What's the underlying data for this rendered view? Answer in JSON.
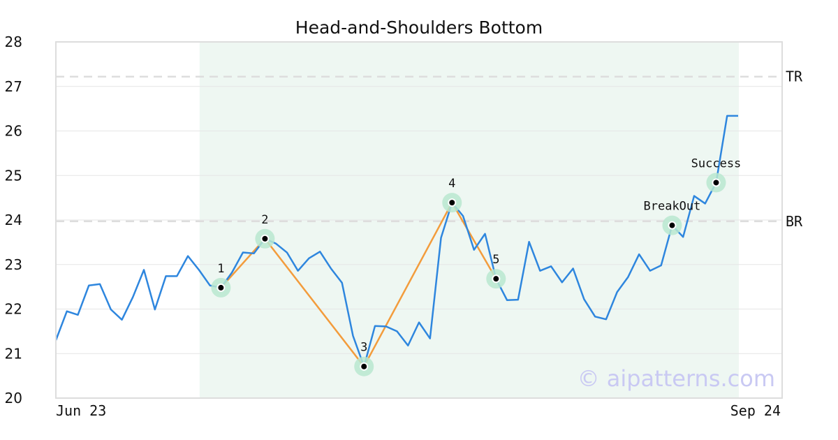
{
  "chart_data": {
    "type": "line",
    "title": "Head-and-Shoulders Bottom",
    "xlabel": "",
    "ylabel": "",
    "ylim": [
      20,
      28
    ],
    "y_ticks": [
      20,
      21,
      22,
      23,
      24,
      25,
      26,
      27,
      28
    ],
    "x_tick_labels": [
      "Jun 23",
      "Sep 24"
    ],
    "grid": "horizontal",
    "colors": {
      "price": "#2e86de",
      "pattern": "#f39c3c",
      "marker_halo": "#b9e8d0",
      "highlight": "#eef7f2",
      "reference": "#dddddd"
    },
    "series": [
      {
        "values": [
          21.3,
          21.95,
          21.87,
          22.53,
          22.56,
          21.99,
          21.76,
          22.27,
          22.88,
          21.99,
          22.74,
          22.74,
          23.19,
          22.88,
          22.53,
          22.48,
          22.82,
          23.27,
          23.25,
          23.58,
          23.47,
          23.27,
          22.86,
          23.14,
          23.29,
          22.91,
          22.59,
          21.4,
          20.71,
          21.62,
          21.61,
          21.5,
          21.18,
          21.7,
          21.34,
          23.6,
          24.39,
          24.09,
          23.33,
          23.69,
          22.68,
          22.2,
          22.21,
          23.51,
          22.86,
          22.96,
          22.6,
          22.91,
          22.22,
          21.83,
          21.77,
          22.38,
          22.72,
          23.23,
          22.86,
          22.98,
          23.88,
          23.62,
          24.54,
          24.37,
          24.84,
          26.34,
          26.34
        ]
      }
    ],
    "pattern_points": [
      {
        "label": "1",
        "index": 15,
        "value": 22.48
      },
      {
        "label": "2",
        "index": 19,
        "value": 23.58
      },
      {
        "label": "3",
        "index": 28,
        "value": 20.71
      },
      {
        "label": "4",
        "index": 36,
        "value": 24.39
      },
      {
        "label": "5",
        "index": 40,
        "value": 22.68
      }
    ],
    "signal_points": [
      {
        "label": "BreakOut",
        "index": 56,
        "value": 23.88
      },
      {
        "label": "Success",
        "index": 60,
        "value": 24.84
      }
    ],
    "reference_lines": [
      {
        "label": "TR",
        "value": 27.22
      },
      {
        "label": "BR",
        "value": 23.97
      }
    ],
    "highlight_range": {
      "start_index": 13,
      "end_index": 62
    },
    "watermark": "© aipatterns.com"
  }
}
